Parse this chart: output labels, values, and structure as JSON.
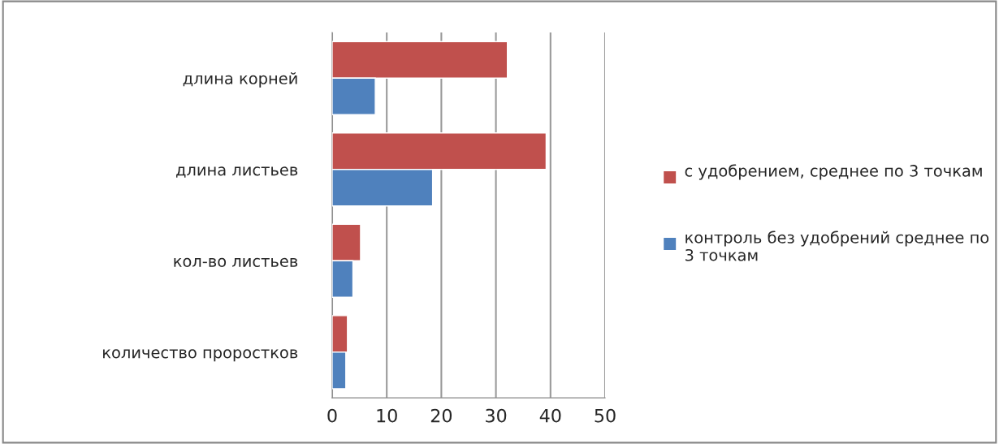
{
  "chart_data": {
    "type": "bar",
    "orientation": "horizontal",
    "categories": [
      "длина корней",
      "длина листьев",
      "кол-во листьев",
      "количество проростков"
    ],
    "series": [
      {
        "name": "с удобрением, среднее по 3 точкам",
        "color": "#c0504d",
        "values": [
          32.1,
          39.2,
          5.2,
          2.8
        ]
      },
      {
        "name": "контроль без удобрений среднее по 3 точкам",
        "color": "#4f81bd",
        "values": [
          7.9,
          18.4,
          3.8,
          2.5
        ]
      }
    ],
    "xlim": [
      0,
      50
    ],
    "xticks": [
      0,
      10,
      20,
      30,
      40,
      50
    ],
    "grid": "x",
    "legend": "right"
  }
}
